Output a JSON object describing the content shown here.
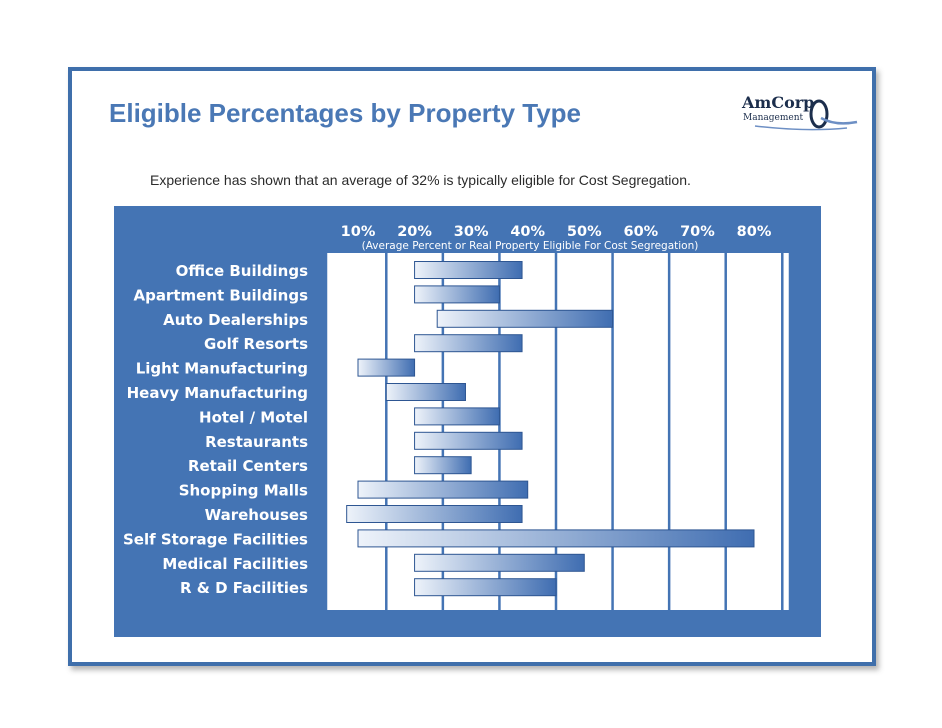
{
  "header": {
    "title": "Eligible Percentages by Property Type",
    "subtitle": "Experience has shown that an average of 32% is typically eligible for Cost Segregation."
  },
  "logo": {
    "name": "AmCorp",
    "sub": "Management",
    "color": "#1c2e4c",
    "accent": "#6d8fc4"
  },
  "colors": {
    "title": "#4a78b5",
    "frame": "#3f6fab",
    "panel": "#4474b4",
    "bar_light": "#eef3fa",
    "bar_dark": "#3f6db1"
  },
  "chart_data": {
    "type": "bar",
    "orientation": "horizontal",
    "range_bars": true,
    "x_axis_position": "top",
    "xlabel": "(Average Percent or Real Property  Eligible For Cost Segregation)",
    "x_ticks": [
      10,
      20,
      30,
      40,
      50,
      60,
      70,
      80
    ],
    "x_tick_labels": [
      "10%",
      "20%",
      "30%",
      "40%",
      "50%",
      "60%",
      "70%",
      "80%"
    ],
    "xlim": [
      10,
      80
    ],
    "grid": true,
    "categories": [
      "Office Buildings",
      "Apartment Buildings",
      "Auto Dealerships",
      "Golf Resorts",
      "Light Manufacturing",
      "Heavy Manufacturing",
      "Hotel / Motel",
      "Restaurants",
      "Retail Centers",
      "Shopping Malls",
      "Warehouses",
      "Self Storage Facilities",
      "Medical Facilities",
      "R & D Facilities"
    ],
    "ranges": [
      [
        20,
        39
      ],
      [
        20,
        35
      ],
      [
        24,
        55
      ],
      [
        20,
        39
      ],
      [
        10,
        20
      ],
      [
        15,
        29
      ],
      [
        20,
        35
      ],
      [
        20,
        39
      ],
      [
        20,
        30
      ],
      [
        10,
        40
      ],
      [
        8,
        39
      ],
      [
        10,
        80
      ],
      [
        20,
        50
      ],
      [
        20,
        45
      ]
    ]
  }
}
